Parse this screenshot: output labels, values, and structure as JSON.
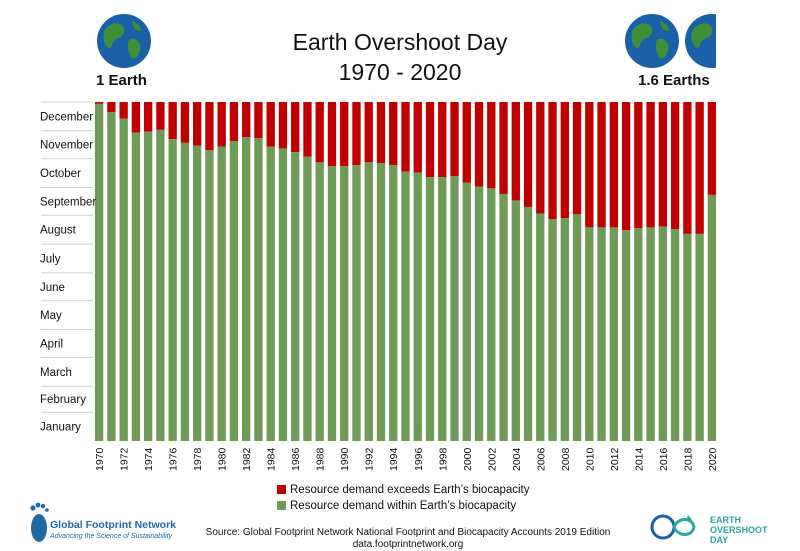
{
  "chart_data": {
    "type": "bar",
    "title": "Earth Overshoot Day",
    "subtitle": "1970 - 2020",
    "left_label": "1 Earth",
    "right_label": "1.6 Earths",
    "categories": [
      1970,
      1971,
      1972,
      1973,
      1974,
      1975,
      1976,
      1977,
      1978,
      1979,
      1980,
      1981,
      1982,
      1983,
      1984,
      1985,
      1986,
      1987,
      1988,
      1989,
      1990,
      1991,
      1992,
      1993,
      1994,
      1995,
      1996,
      1997,
      1998,
      1999,
      2000,
      2001,
      2002,
      2003,
      2004,
      2005,
      2006,
      2007,
      2008,
      2009,
      2010,
      2011,
      2012,
      2013,
      2014,
      2015,
      2016,
      2017,
      2018,
      2019,
      2020
    ],
    "x_tick_labels": [
      "1970",
      "1972",
      "1974",
      "1976",
      "1978",
      "1980",
      "1982",
      "1984",
      "1986",
      "1988",
      "1990",
      "1992",
      "1994",
      "1996",
      "1998",
      "2000",
      "2002",
      "2004",
      "2006",
      "2008",
      "2010",
      "2012",
      "2014",
      "2016",
      "2018",
      "2020"
    ],
    "y_tick_labels": [
      "January",
      "February",
      "March",
      "April",
      "May",
      "June",
      "July",
      "August",
      "September",
      "October",
      "November",
      "December"
    ],
    "ylabel_units": "day of year",
    "ylim": [
      0,
      365
    ],
    "series": [
      {
        "name": "Resource demand within Earth's biocapacity",
        "color": "#6f9a57",
        "values": [
          363,
          354,
          347,
          332,
          333,
          335,
          325,
          321,
          318,
          313,
          317,
          323,
          327,
          326,
          317,
          315,
          311,
          306,
          300,
          296,
          296,
          297,
          300,
          299,
          297,
          290,
          289,
          284,
          284,
          285,
          278,
          274,
          272,
          266,
          259,
          252,
          245,
          239,
          240,
          244,
          230,
          230,
          230,
          227,
          229,
          230,
          231,
          228,
          223,
          223,
          265
        ]
      },
      {
        "name": "Resource demand exceeds Earth's biocapacity",
        "color": "#c00000",
        "stacked_to": 365
      }
    ],
    "legend": [
      {
        "label": "Resource demand exceeds Earth’s biocapacity",
        "color": "#c00000"
      },
      {
        "label": "Resource demand within Earth’s biocapacity",
        "color": "#6f9a57"
      }
    ]
  },
  "footer": {
    "source_line1": "Source: Global Footprint Network National Footprint and Biocapacity Accounts 2019 Edition",
    "source_line2": "data.footprintnetwork.org",
    "gfn_name": "Global Footprint Network",
    "gfn_tagline": "Advancing the Science of Sustainability",
    "eod_line1": "EARTH",
    "eod_line2": "OVERSHOOT",
    "eod_line3": "DAY"
  },
  "colors": {
    "green": "#6f9a57",
    "red": "#c00000",
    "ocean": "#1b5fa6",
    "land": "#3f8f3a"
  }
}
